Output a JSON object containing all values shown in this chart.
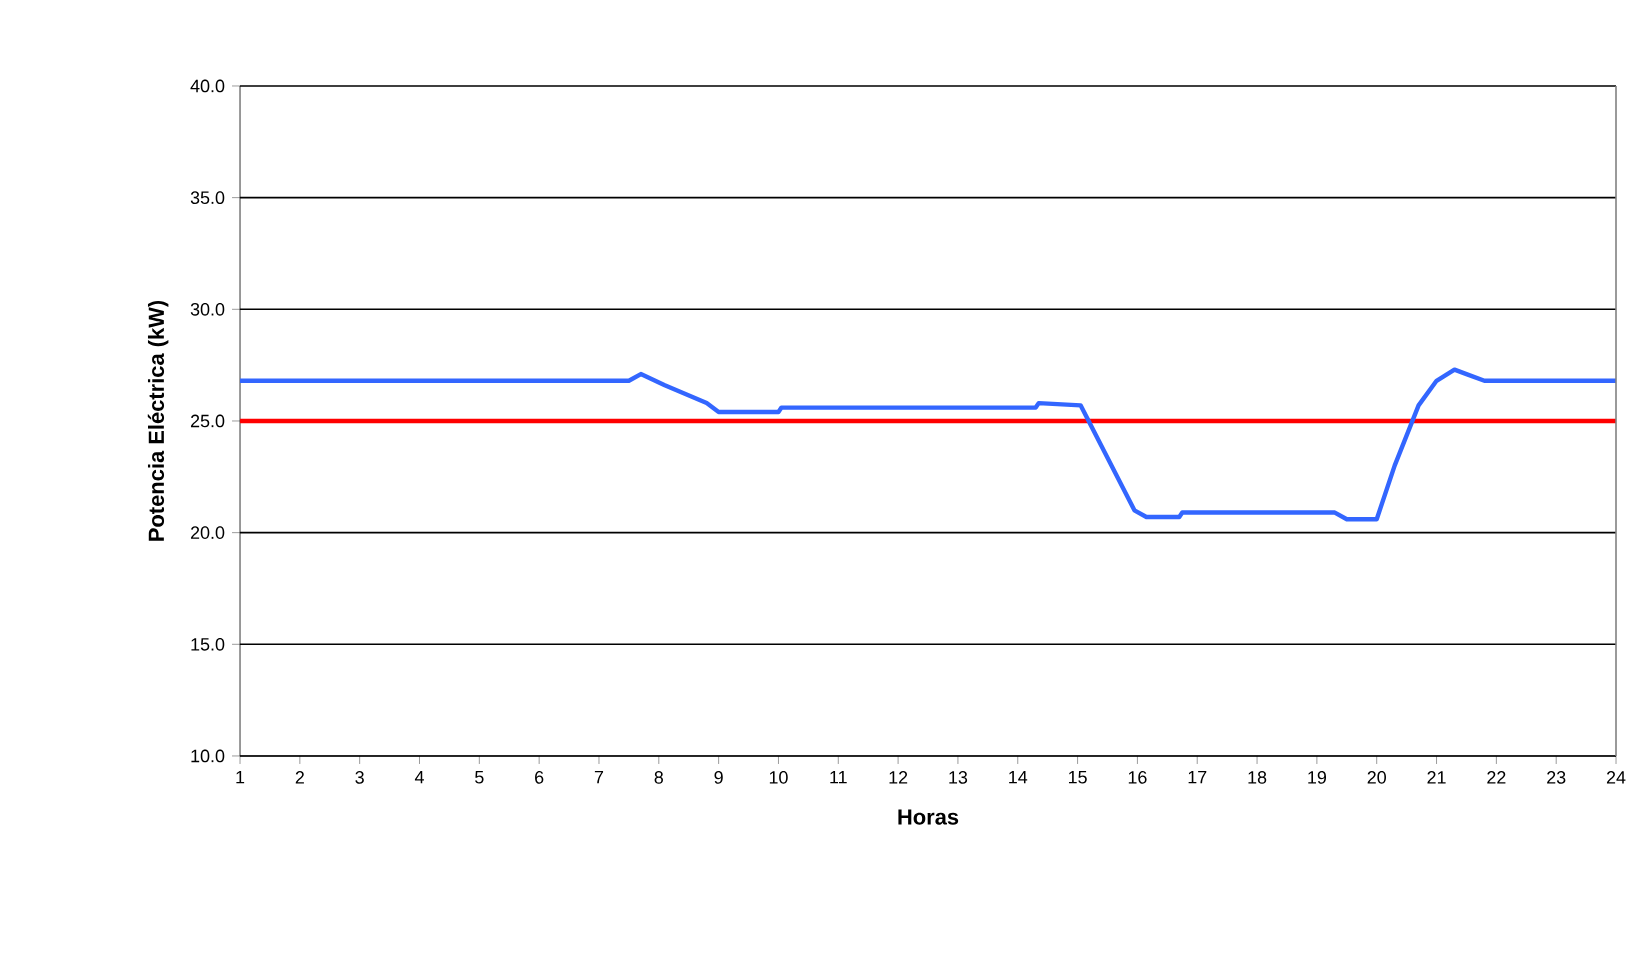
{
  "chart_data": {
    "type": "line",
    "xlabel": "Horas",
    "ylabel": "Potencia Eléctrica (kW)",
    "xlim": [
      1,
      24
    ],
    "xticks": [
      1,
      2,
      3,
      4,
      5,
      6,
      7,
      8,
      9,
      10,
      11,
      12,
      13,
      14,
      15,
      16,
      17,
      18,
      19,
      20,
      21,
      22,
      23,
      24
    ],
    "ylim": [
      10,
      40
    ],
    "yticks": [
      {
        "value": 10,
        "label": "10.0"
      },
      {
        "value": 15,
        "label": "15.0"
      },
      {
        "value": 20,
        "label": "20.0"
      },
      {
        "value": 25,
        "label": "25.0"
      },
      {
        "value": 30,
        "label": "30.0"
      },
      {
        "value": 35,
        "label": "35.0"
      },
      {
        "value": 40,
        "label": "40.0"
      }
    ],
    "grid": "y",
    "marker": "none",
    "line_style": "solid",
    "series": [
      {
        "color": "#3366ff",
        "x": [
          1,
          7.5,
          7.7,
          8.1,
          8.8,
          9.0,
          10.0,
          10.05,
          14.3,
          14.35,
          15.05,
          15.95,
          16.15,
          16.7,
          16.75,
          19.3,
          19.5,
          20.0,
          20.3,
          20.7,
          21.0,
          21.3,
          21.5,
          21.8,
          24
        ],
        "values": [
          26.8,
          26.8,
          27.1,
          26.6,
          25.8,
          25.4,
          25.4,
          25.6,
          25.6,
          25.8,
          25.7,
          21.0,
          20.7,
          20.7,
          20.9,
          20.9,
          20.6,
          20.6,
          23.0,
          25.7,
          26.8,
          27.3,
          27.1,
          26.8,
          26.8
        ]
      }
    ],
    "ref_lines": [
      {
        "axis": "y",
        "value": 25,
        "color": "#ff0000",
        "line_style": "solid"
      }
    ]
  }
}
